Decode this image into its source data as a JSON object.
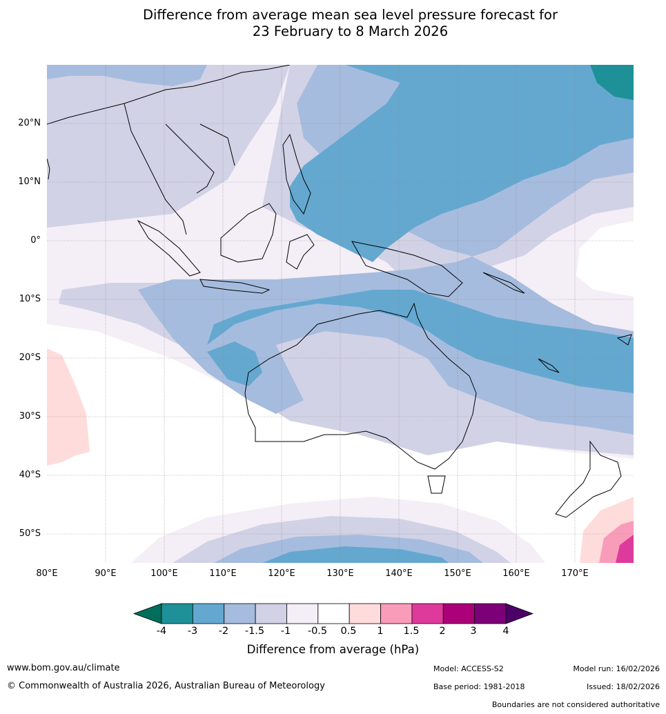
{
  "title": {
    "line1": "Difference from average mean sea level pressure forecast for",
    "line2": "23 February to 8 March 2026"
  },
  "latitude_labels": [
    "20°N",
    "10°N",
    "0°",
    "10°S",
    "20°S",
    "30°S",
    "40°S",
    "50°S"
  ],
  "longitude_labels": [
    "80°E",
    "90°E",
    "100°E",
    "110°E",
    "120°E",
    "130°E",
    "140°E",
    "150°E",
    "160°E",
    "170°E"
  ],
  "colorbar": {
    "ticks": [
      "-4",
      "-3",
      "-2",
      "-1.5",
      "-1",
      "-0.5",
      "0.5",
      "1",
      "1.5",
      "2",
      "3",
      "4"
    ],
    "colors": [
      "#006e5c",
      "#1e9098",
      "#64a8d0",
      "#a6bcde",
      "#d2d2e6",
      "#f4eef6",
      "#ffffff",
      "#ffdcdc",
      "#f89cba",
      "#de3a9c",
      "#ac0078",
      "#7c0078",
      "#4c0068"
    ],
    "label": "Difference from average (hPa)"
  },
  "footer": {
    "website": "www.bom.gov.au/climate",
    "copyright": "© Commonwealth of Australia 2026, Australian Bureau of Meteorology",
    "model": "Model: ACCESS-S2",
    "model_run": "Model run: 16/02/2026",
    "base_period": "Base period: 1981-2018",
    "issued": "Issued: 18/02/2026",
    "disclaimer": "Boundaries are not considered authoritative"
  }
}
